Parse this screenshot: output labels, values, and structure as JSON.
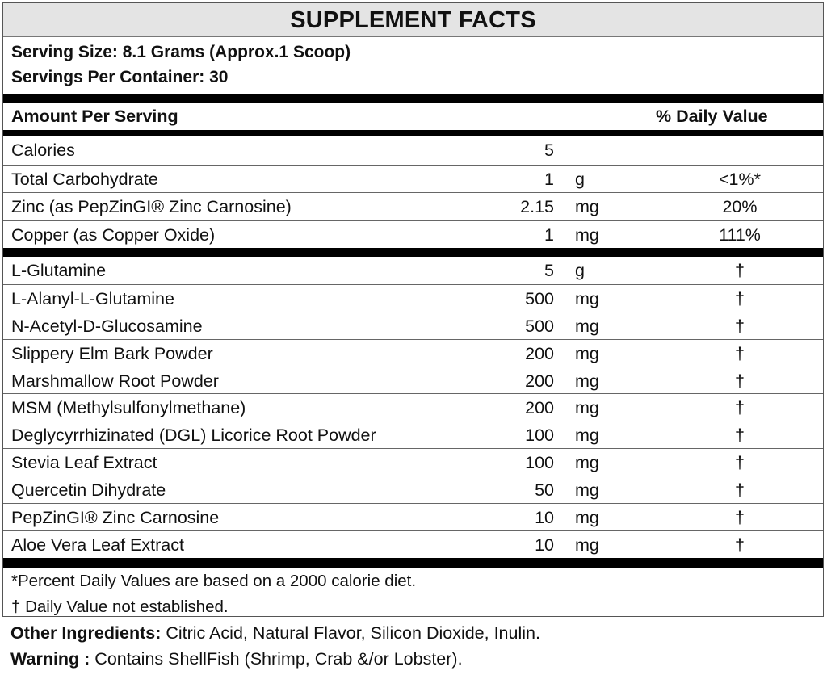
{
  "title": "SUPPLEMENT FACTS",
  "serving_size": "Serving Size: 8.1 Grams (Approx.1 Scoop)",
  "servings_per_container": "Servings Per Container: 30",
  "header": {
    "amount": "Amount Per Serving",
    "daily_value": "% Daily Value"
  },
  "nutrients": [
    {
      "name": "Calories",
      "amount": "5",
      "unit": "",
      "dv": ""
    },
    {
      "name": "Total Carbohydrate",
      "amount": "1",
      "unit": "g",
      "dv": "<1%*"
    },
    {
      "name": "Zinc (as PepZinGI® Zinc Carnosine)",
      "amount": "2.15",
      "unit": "mg",
      "dv": "20%"
    },
    {
      "name": "Copper (as Copper Oxide)",
      "amount": "1",
      "unit": "mg",
      "dv": "111%"
    }
  ],
  "ingredients": [
    {
      "name": "L-Glutamine",
      "amount": "5",
      "unit": "g",
      "dv": "†"
    },
    {
      "name": "L-Alanyl-L-Glutamine",
      "amount": "500",
      "unit": "mg",
      "dv": "†"
    },
    {
      "name": "N-Acetyl-D-Glucosamine",
      "amount": "500",
      "unit": "mg",
      "dv": "†"
    },
    {
      "name": "Slippery Elm Bark Powder",
      "amount": "200",
      "unit": "mg",
      "dv": "†"
    },
    {
      "name": "Marshmallow Root Powder",
      "amount": "200",
      "unit": "mg",
      "dv": "†"
    },
    {
      "name": "MSM (Methylsulfonylmethane)",
      "amount": "200",
      "unit": "mg",
      "dv": "†"
    },
    {
      "name": "Deglycyrrhizinated (DGL) Licorice Root Powder",
      "amount": "100",
      "unit": "mg",
      "dv": "†"
    },
    {
      "name": "Stevia Leaf Extract",
      "amount": "100",
      "unit": "mg",
      "dv": "†"
    },
    {
      "name": "Quercetin Dihydrate",
      "amount": "50",
      "unit": "mg",
      "dv": "†"
    },
    {
      "name": "PepZinGI® Zinc Carnosine",
      "amount": "10",
      "unit": "mg",
      "dv": "†"
    },
    {
      "name": "Aloe Vera Leaf Extract",
      "amount": "10",
      "unit": "mg",
      "dv": "†"
    }
  ],
  "footnotes": {
    "percent": "*Percent Daily Values are based on a 2000 calorie diet.",
    "dagger": "† Daily Value not established."
  },
  "other_ingredients": {
    "label": "Other Ingredients:",
    "text": " Citric Acid, Natural Flavor, Silicon Dioxide, Inulin."
  },
  "warning": {
    "label": "Warning :",
    "text": " Contains ShellFish (Shrimp, Crab &/or Lobster)."
  }
}
